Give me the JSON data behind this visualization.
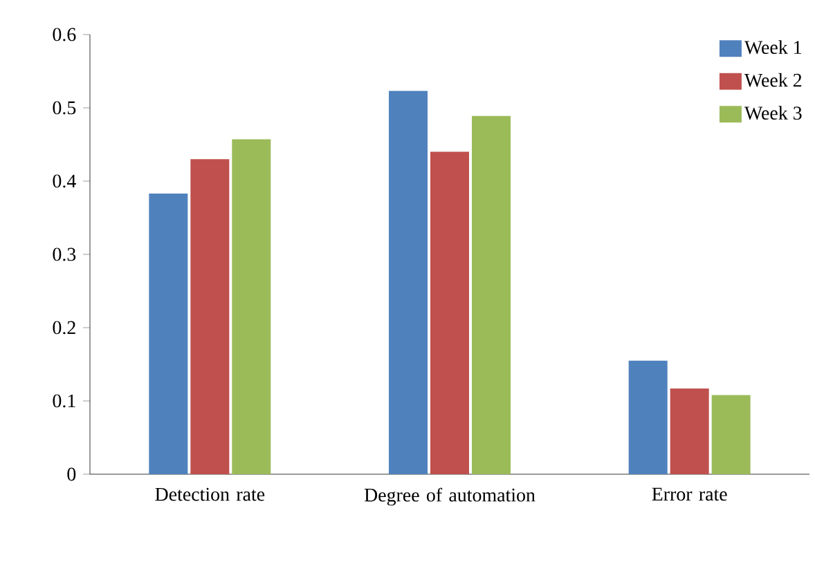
{
  "chart_data": {
    "type": "bar",
    "categories": [
      "Detection rate",
      "Degree of automation",
      "Error rate"
    ],
    "series": [
      {
        "name": "Week 1",
        "color": "#4f81bd",
        "values": [
          0.383,
          0.523,
          0.155
        ]
      },
      {
        "name": "Week 2",
        "color": "#c0504d",
        "values": [
          0.43,
          0.44,
          0.117
        ]
      },
      {
        "name": "Week 3",
        "color": "#9bbb59",
        "values": [
          0.457,
          0.489,
          0.108
        ]
      }
    ],
    "ylim": [
      0,
      0.6
    ],
    "yticks": [
      0,
      0.1,
      0.2,
      0.3,
      0.4,
      0.5,
      0.6
    ],
    "grid": false,
    "legend": "top right"
  }
}
